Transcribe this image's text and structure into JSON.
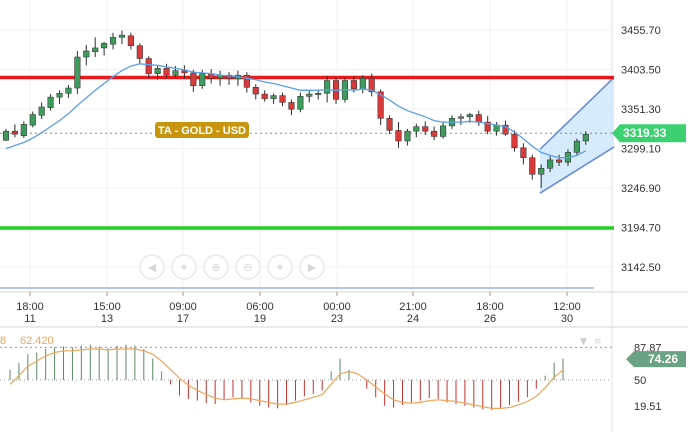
{
  "chart_data": [
    {
      "type": "candlestick",
      "label": "TA - GOLD - USD",
      "x_ticks": [
        {
          "time": "18:00",
          "day": "11"
        },
        {
          "time": "15:00",
          "day": "13"
        },
        {
          "time": "09:00",
          "day": "17"
        },
        {
          "time": "06:00",
          "day": "19"
        },
        {
          "time": "00:00",
          "day": "23"
        },
        {
          "time": "21:00",
          "day": "24"
        },
        {
          "time": "18:00",
          "day": "26"
        },
        {
          "time": "12:00",
          "day": "30"
        }
      ],
      "y_ticks": [
        "3455.70",
        "3403.50",
        "3351.30",
        "3299.10",
        "3246.90",
        "3194.70",
        "3142.50"
      ],
      "ylim": [
        3107,
        3494
      ],
      "last_price": "3319.33",
      "resistance": 3393,
      "support": 3194,
      "channel": {
        "upper": [
          3298,
          3393
        ],
        "lower": [
          3240,
          3301
        ]
      },
      "candles": [
        [
          3310,
          3325,
          3309,
          3322
        ],
        [
          3322,
          3331,
          3314,
          3318
        ],
        [
          3316,
          3335,
          3313,
          3331
        ],
        [
          3330,
          3348,
          3327,
          3344
        ],
        [
          3343,
          3360,
          3338,
          3354
        ],
        [
          3353,
          3371,
          3349,
          3367
        ],
        [
          3367,
          3376,
          3358,
          3372
        ],
        [
          3372,
          3383,
          3366,
          3379
        ],
        [
          3379,
          3428,
          3371,
          3420
        ],
        [
          3420,
          3436,
          3409,
          3428
        ],
        [
          3427,
          3446,
          3420,
          3432
        ],
        [
          3432,
          3440,
          3422,
          3438
        ],
        [
          3437,
          3452,
          3430,
          3446
        ],
        [
          3446,
          3455,
          3437,
          3449
        ],
        [
          3448,
          3452,
          3430,
          3435
        ],
        [
          3435,
          3438,
          3410,
          3418
        ],
        [
          3418,
          3421,
          3392,
          3398
        ],
        [
          3398,
          3409,
          3390,
          3405
        ],
        [
          3405,
          3411,
          3392,
          3396
        ],
        [
          3396,
          3408,
          3392,
          3402
        ],
        [
          3402,
          3409,
          3392,
          3399
        ],
        [
          3399,
          3403,
          3374,
          3382
        ],
        [
          3382,
          3403,
          3378,
          3398
        ],
        [
          3398,
          3404,
          3385,
          3392
        ],
        [
          3392,
          3402,
          3382,
          3396
        ],
        [
          3396,
          3400,
          3383,
          3391
        ],
        [
          3391,
          3402,
          3382,
          3396
        ],
        [
          3396,
          3400,
          3373,
          3380
        ],
        [
          3380,
          3384,
          3364,
          3371
        ],
        [
          3371,
          3376,
          3361,
          3365
        ],
        [
          3365,
          3372,
          3358,
          3369
        ],
        [
          3369,
          3373,
          3355,
          3360
        ],
        [
          3360,
          3364,
          3343,
          3351
        ],
        [
          3351,
          3373,
          3347,
          3368
        ],
        [
          3368,
          3376,
          3360,
          3371
        ],
        [
          3371,
          3377,
          3364,
          3372
        ],
        [
          3372,
          3395,
          3360,
          3389
        ],
        [
          3389,
          3393,
          3358,
          3364
        ],
        [
          3364,
          3393,
          3360,
          3389
        ],
        [
          3389,
          3395,
          3373,
          3378
        ],
        [
          3378,
          3396,
          3372,
          3392
        ],
        [
          3392,
          3398,
          3368,
          3374
        ],
        [
          3374,
          3377,
          3330,
          3339
        ],
        [
          3339,
          3343,
          3318,
          3323
        ],
        [
          3323,
          3334,
          3300,
          3309
        ],
        [
          3309,
          3325,
          3303,
          3322
        ],
        [
          3322,
          3332,
          3314,
          3328
        ],
        [
          3328,
          3335,
          3317,
          3322
        ],
        [
          3322,
          3328,
          3310,
          3315
        ],
        [
          3315,
          3334,
          3312,
          3329
        ],
        [
          3329,
          3343,
          3325,
          3339
        ],
        [
          3339,
          3345,
          3330,
          3341
        ],
        [
          3341,
          3346,
          3333,
          3344
        ],
        [
          3344,
          3349,
          3329,
          3334
        ],
        [
          3334,
          3342,
          3318,
          3322
        ],
        [
          3322,
          3334,
          3316,
          3330
        ],
        [
          3330,
          3336,
          3316,
          3318
        ],
        [
          3318,
          3323,
          3295,
          3300
        ],
        [
          3300,
          3306,
          3278,
          3287
        ],
        [
          3287,
          3291,
          3258,
          3265
        ],
        [
          3265,
          3278,
          3247,
          3273
        ],
        [
          3273,
          3289,
          3268,
          3284
        ],
        [
          3284,
          3291,
          3276,
          3281
        ],
        [
          3281,
          3298,
          3276,
          3294
        ],
        [
          3294,
          3312,
          3290,
          3309
        ],
        [
          3309,
          3322,
          3304,
          3318
        ]
      ],
      "ma": [
        3299,
        3303,
        3307,
        3313,
        3320,
        3328,
        3336,
        3345,
        3356,
        3366,
        3376,
        3385,
        3394,
        3402,
        3408,
        3411,
        3410,
        3409,
        3407,
        3405,
        3403,
        3400,
        3399,
        3398,
        3396,
        3395,
        3394,
        3392,
        3390,
        3387,
        3385,
        3382,
        3379,
        3376,
        3376,
        3376,
        3377,
        3376,
        3377,
        3376,
        3378,
        3376,
        3370,
        3363,
        3355,
        3349,
        3345,
        3341,
        3336,
        3334,
        3334,
        3334,
        3335,
        3334,
        3332,
        3330,
        3328,
        3321,
        3312,
        3302,
        3294,
        3290,
        3287,
        3287,
        3290,
        3296
      ],
      "oscillator": {
        "labels": [
          "87.87",
          "50",
          "19.51"
        ],
        "current": "74.26",
        "top_label": "8",
        "top_value": "62.420",
        "range": [
          0,
          100
        ],
        "histogram": [
          62,
          70,
          80,
          82,
          86,
          88,
          89,
          88,
          90,
          91,
          89,
          87,
          90,
          91,
          90,
          86,
          75,
          60,
          45,
          32,
          28,
          26,
          23,
          22,
          27,
          30,
          28,
          24,
          20,
          18,
          17,
          21,
          26,
          31,
          34,
          38,
          60,
          75,
          62,
          50,
          40,
          30,
          20,
          18,
          21,
          24,
          26,
          29,
          28,
          24,
          22,
          20,
          18,
          16,
          15,
          18,
          21,
          25,
          30,
          40,
          55,
          70,
          75
        ],
        "signal": [
          45,
          55,
          66,
          72,
          78,
          82,
          84,
          84,
          85,
          86,
          86,
          85,
          86,
          86,
          86,
          84,
          80,
          72,
          62,
          52,
          44,
          38,
          33,
          29,
          27,
          28,
          29,
          28,
          26,
          24,
          22,
          22,
          24,
          27,
          30,
          33,
          45,
          57,
          60,
          57,
          50,
          42,
          34,
          27,
          24,
          23,
          24,
          26,
          27,
          26,
          25,
          23,
          21,
          19,
          17,
          17,
          18,
          21,
          25,
          31,
          41,
          53,
          62
        ]
      }
    }
  ],
  "colors": {
    "bull": "#3f9a5e",
    "bear": "#d63a3a",
    "ma": "#5aa0e6",
    "resistance": "#e8191c",
    "support": "#20d020",
    "channel_fill": "#cfe8fb",
    "channel_edge": "#6a8bd8",
    "price_tag": "#3cd071",
    "osc_tag": "#6aa381",
    "label_bg": "#c8960e",
    "osc_line": "#f0a55a",
    "osc_pos": "#5b8a66",
    "osc_neg": "#c13131",
    "grid": "#f0f0f0",
    "axis_text": "#333333"
  },
  "toolbar_icons": [
    "arrow-left-icon",
    "move-left-icon",
    "zoom-in-icon",
    "zoom-out-icon",
    "move-right-icon",
    "arrow-right-icon"
  ]
}
